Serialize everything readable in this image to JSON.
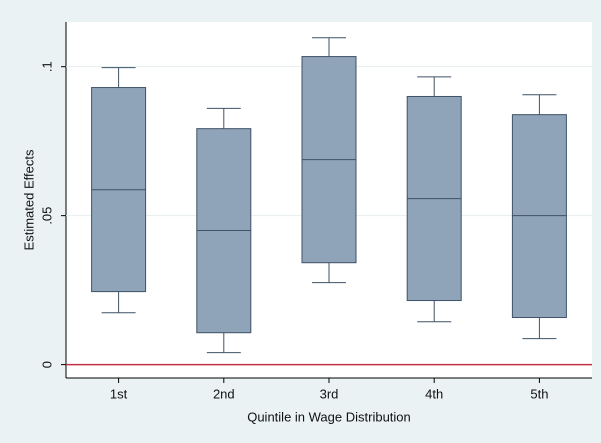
{
  "chart_data": {
    "type": "box",
    "y_label": "Estimated Effects",
    "x_label": "Quintile in Wage Distribution",
    "categories": [
      "1st",
      "2nd",
      "3rd",
      "4th",
      "5th"
    ],
    "whisker_low": [
      0.0174,
      0.004,
      0.0275,
      0.0144,
      0.0087
    ],
    "q1": [
      0.0245,
      0.0107,
      0.0342,
      0.0215,
      0.0158
    ],
    "median": [
      0.0587,
      0.045,
      0.0688,
      0.0557,
      0.05
    ],
    "q3": [
      0.093,
      0.0792,
      0.1034,
      0.09,
      0.0839
    ],
    "whisker_high": [
      0.0997,
      0.086,
      0.1097,
      0.0966,
      0.0906
    ],
    "color": "#8fa3b9",
    "ylim": [
      -0.0045,
      0.115
    ],
    "yticks": [
      0,
      {
        "value": 0.05,
        "label": ".05"
      },
      {
        "value": 0.1,
        "label": ".1"
      }
    ],
    "grid": true,
    "yline": 0,
    "yline_color": "#c0304a"
  }
}
